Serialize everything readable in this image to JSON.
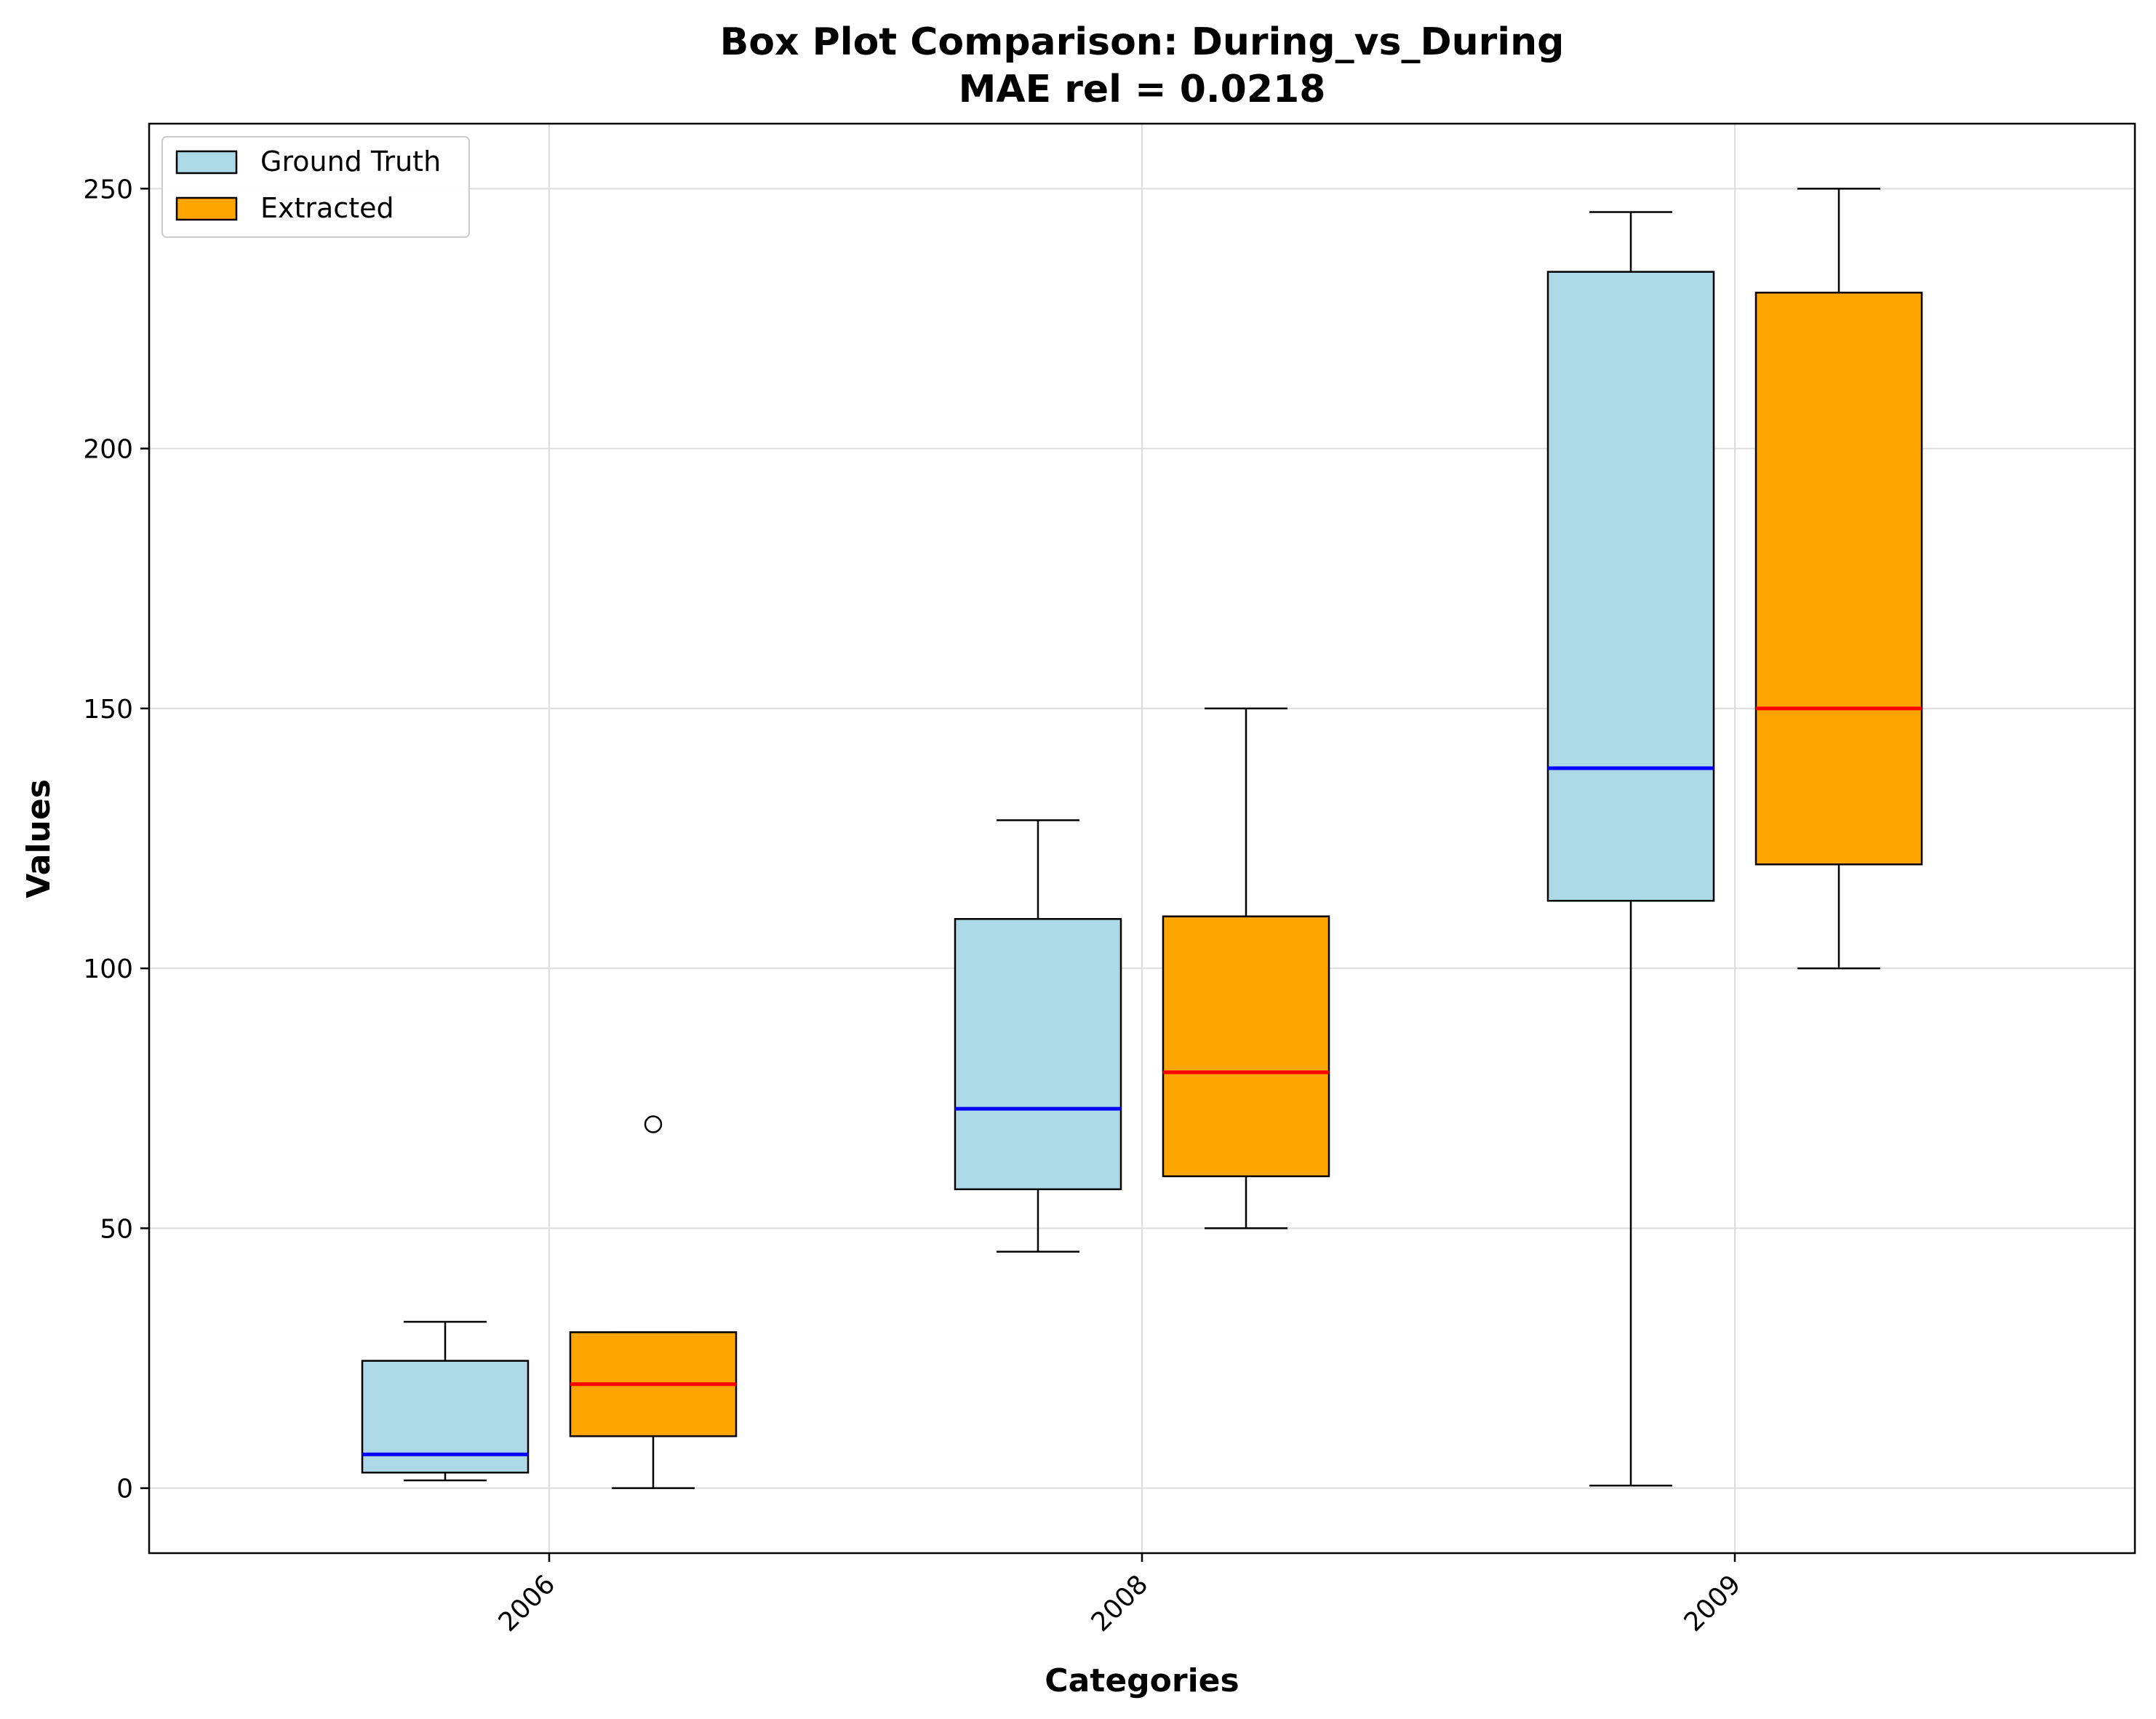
{
  "chart_data": {
    "type": "box",
    "title": "Box Plot Comparison: During_vs_During",
    "subtitle": "MAE rel = 0.0218",
    "xlabel": "Categories",
    "ylabel": "Values",
    "categories": [
      "2006",
      "2008",
      "2009"
    ],
    "ylim": [
      -12.5,
      262.5
    ],
    "yticks": [
      0,
      50,
      100,
      150,
      200,
      250
    ],
    "grid": true,
    "legend_position": "top-left",
    "series": [
      {
        "name": "Ground Truth",
        "fill": "#add8e6",
        "median_color": "#0000ff",
        "boxes": [
          {
            "whisker_low": 1.5,
            "q1": 3,
            "median": 6.5,
            "q3": 24.5,
            "whisker_high": 32,
            "outliers": []
          },
          {
            "whisker_low": 45.5,
            "q1": 57.5,
            "median": 73,
            "q3": 109.5,
            "whisker_high": 128.5,
            "outliers": []
          },
          {
            "whisker_low": 0.5,
            "q1": 113,
            "median": 138.5,
            "q3": 234,
            "whisker_high": 245.5,
            "outliers": []
          }
        ]
      },
      {
        "name": "Extracted",
        "fill": "#ffa500",
        "median_color": "#ff0000",
        "boxes": [
          {
            "whisker_low": 0,
            "q1": 10,
            "median": 20,
            "q3": 30,
            "whisker_high": 30,
            "outliers": [
              70
            ]
          },
          {
            "whisker_low": 50,
            "q1": 60,
            "median": 80,
            "q3": 110,
            "whisker_high": 150,
            "outliers": []
          },
          {
            "whisker_low": 100,
            "q1": 120,
            "median": 150,
            "q3": 230,
            "whisker_high": 250,
            "outliers": []
          }
        ]
      }
    ]
  }
}
